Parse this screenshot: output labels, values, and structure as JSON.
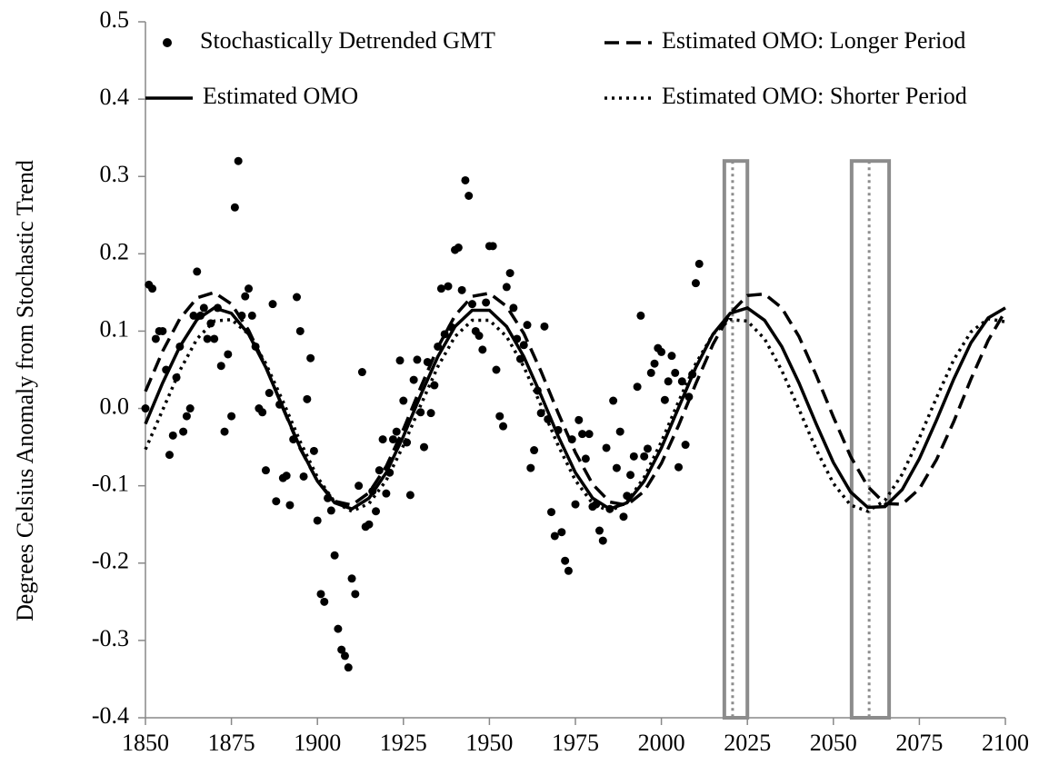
{
  "chart_data": {
    "type": "line",
    "y_label": "Degrees Celsius Anomaly from Stochastic Trend",
    "xlim": [
      1850,
      2100
    ],
    "xticks": [
      1850,
      1875,
      1900,
      1925,
      1950,
      1975,
      2000,
      2025,
      2050,
      2075,
      2100
    ],
    "ylim": [
      -0.4,
      0.5
    ],
    "yticks": [
      -0.4,
      -0.3,
      -0.2,
      -0.1,
      {
        "value": 0,
        "label": "0.0"
      },
      0.1,
      0.2,
      0.3,
      0.4,
      0.5
    ],
    "grid": false,
    "legend": "top",
    "series": [
      {
        "name": "Stochastically Detrended GMT",
        "type": "scatter",
        "color": "#000000",
        "x": [
          1850,
          1851,
          1852,
          1853,
          1854,
          1855,
          1856,
          1857,
          1858,
          1859,
          1860,
          1861,
          1862,
          1863,
          1864,
          1865,
          1866,
          1867,
          1868,
          1869,
          1870,
          1871,
          1872,
          1873,
          1874,
          1875,
          1876,
          1877,
          1878,
          1879,
          1880,
          1881,
          1882,
          1883,
          1884,
          1885,
          1886,
          1887,
          1888,
          1889,
          1890,
          1891,
          1892,
          1893,
          1894,
          1895,
          1896,
          1897,
          1898,
          1899,
          1900,
          1901,
          1902,
          1903,
          1904,
          1905,
          1906,
          1907,
          1908,
          1909,
          1910,
          1911,
          1912,
          1913,
          1914,
          1915,
          1916,
          1917,
          1918,
          1919,
          1920,
          1921,
          1922,
          1923,
          1924,
          1925,
          1926,
          1927,
          1928,
          1929,
          1930,
          1931,
          1932,
          1933,
          1934,
          1935,
          1936,
          1937,
          1938,
          1939,
          1940,
          1941,
          1942,
          1943,
          1944,
          1945,
          1946,
          1947,
          1948,
          1949,
          1950,
          1951,
          1952,
          1953,
          1954,
          1955,
          1956,
          1957,
          1958,
          1959,
          1960,
          1961,
          1962,
          1963,
          1964,
          1965,
          1966,
          1967,
          1968,
          1969,
          1970,
          1971,
          1972,
          1973,
          1974,
          1975,
          1976,
          1977,
          1978,
          1979,
          1980,
          1981,
          1982,
          1983,
          1984,
          1985,
          1986,
          1987,
          1988,
          1989,
          1990,
          1991,
          1992,
          1993,
          1994,
          1995,
          1996,
          1997,
          1998,
          1999,
          2000,
          2001,
          2002,
          2003,
          2004,
          2005,
          2006,
          2007,
          2008,
          2009,
          2010,
          2011
        ],
        "values": [
          0.0,
          0.16,
          0.155,
          0.09,
          0.1,
          0.1,
          0.05,
          -0.06,
          -0.035,
          0.04,
          0.08,
          -0.03,
          -0.01,
          0.0,
          0.12,
          0.177,
          0.12,
          0.13,
          0.09,
          0.11,
          0.09,
          0.13,
          0.055,
          -0.03,
          0.07,
          -0.01,
          0.26,
          0.32,
          0.12,
          0.145,
          0.155,
          0.12,
          0.08,
          0.0,
          -0.005,
          -0.08,
          0.02,
          0.135,
          -0.12,
          0.005,
          -0.09,
          -0.087,
          -0.125,
          -0.04,
          0.144,
          0.1,
          -0.088,
          0.012,
          0.065,
          -0.055,
          -0.145,
          -0.24,
          -0.25,
          -0.116,
          -0.132,
          -0.19,
          -0.285,
          -0.312,
          -0.32,
          -0.335,
          -0.22,
          -0.24,
          -0.1,
          0.047,
          -0.153,
          -0.15,
          -0.107,
          -0.133,
          -0.08,
          -0.04,
          -0.11,
          -0.083,
          -0.04,
          -0.03,
          0.062,
          0.01,
          -0.044,
          -0.112,
          0.037,
          0.063,
          -0.005,
          -0.05,
          0.06,
          -0.006,
          0.03,
          0.08,
          0.155,
          0.096,
          0.158,
          0.105,
          0.205,
          0.208,
          0.153,
          0.295,
          0.275,
          0.135,
          0.1,
          0.094,
          0.076,
          0.137,
          0.21,
          0.21,
          0.05,
          -0.01,
          -0.023,
          0.157,
          0.175,
          0.13,
          0.09,
          0.064,
          0.082,
          0.108,
          -0.077,
          -0.054,
          0.023,
          -0.006,
          0.106,
          -0.014,
          -0.134,
          -0.165,
          -0.028,
          -0.16,
          -0.197,
          -0.21,
          -0.04,
          -0.124,
          -0.015,
          -0.033,
          -0.065,
          -0.033,
          -0.127,
          -0.124,
          -0.158,
          -0.171,
          -0.051,
          -0.13,
          0.01,
          -0.077,
          -0.03,
          -0.14,
          -0.113,
          -0.086,
          -0.062,
          0.028,
          0.12,
          -0.062,
          -0.052,
          0.046,
          0.058,
          0.078,
          0.073,
          0.011,
          0.035,
          0.068,
          0.046,
          -0.076,
          0.035,
          -0.047,
          0.015,
          0.044,
          0.162,
          0.187
        ]
      },
      {
        "name": "Estimated OMO",
        "type": "line",
        "dash": "solid",
        "color": "#000000",
        "x": [
          1850,
          1855,
          1860,
          1865,
          1870,
          1875,
          1880,
          1885,
          1890,
          1895,
          1900,
          1905,
          1910,
          1915,
          1920,
          1925,
          1930,
          1935,
          1940,
          1945,
          1950,
          1955,
          1960,
          1965,
          1970,
          1975,
          1980,
          1985,
          1990,
          1995,
          2000,
          2005,
          2010,
          2015,
          2020,
          2025,
          2030,
          2035,
          2040,
          2045,
          2050,
          2055,
          2060,
          2065,
          2070,
          2075,
          2080,
          2085,
          2090,
          2095,
          2100
        ],
        "values": [
          -0.02,
          0.033,
          0.08,
          0.115,
          0.13,
          0.123,
          0.096,
          0.053,
          0.001,
          -0.051,
          -0.094,
          -0.122,
          -0.13,
          -0.116,
          -0.083,
          -0.036,
          0.017,
          0.067,
          0.106,
          0.127,
          0.127,
          0.106,
          0.067,
          0.017,
          -0.036,
          -0.083,
          -0.116,
          -0.13,
          -0.122,
          -0.094,
          -0.051,
          0.001,
          0.053,
          0.096,
          0.123,
          0.13,
          0.114,
          0.08,
          0.033,
          -0.02,
          -0.07,
          -0.108,
          -0.128,
          -0.127,
          -0.105,
          -0.065,
          -0.015,
          0.038,
          0.085,
          0.117,
          0.13
        ]
      },
      {
        "name": "Estimated OMO: Longer Period",
        "type": "line",
        "dash": "dashed",
        "color": "#000000",
        "x": [
          1850,
          1855,
          1860,
          1865,
          1870,
          1875,
          1880,
          1885,
          1890,
          1895,
          1900,
          1905,
          1910,
          1915,
          1920,
          1925,
          1930,
          1935,
          1940,
          1945,
          1950,
          1955,
          1960,
          1965,
          1970,
          1975,
          1980,
          1985,
          1990,
          1995,
          2000,
          2005,
          2010,
          2015,
          2020,
          2025,
          2030,
          2035,
          2040,
          2045,
          2050,
          2055,
          2060,
          2065,
          2070,
          2075,
          2080,
          2085,
          2090,
          2095,
          2100
        ],
        "values": [
          0.022,
          0.074,
          0.116,
          0.143,
          0.15,
          0.135,
          0.101,
          0.054,
          0.0,
          -0.052,
          -0.094,
          -0.12,
          -0.125,
          -0.109,
          -0.075,
          -0.027,
          0.027,
          0.079,
          0.12,
          0.145,
          0.149,
          0.132,
          0.097,
          0.048,
          -0.006,
          -0.057,
          -0.098,
          -0.121,
          -0.125,
          -0.107,
          -0.071,
          -0.022,
          0.032,
          0.083,
          0.123,
          0.146,
          0.148,
          0.13,
          0.093,
          0.043,
          -0.011,
          -0.062,
          -0.101,
          -0.123,
          -0.124,
          -0.104,
          -0.066,
          -0.017,
          0.038,
          0.088,
          0.126
        ]
      },
      {
        "name": "Estimated OMO: Shorter Period",
        "type": "line",
        "dash": "dotted",
        "color": "#000000",
        "x": [
          1850,
          1855,
          1860,
          1865,
          1870,
          1875,
          1880,
          1885,
          1890,
          1895,
          1900,
          1905,
          1910,
          1915,
          1920,
          1925,
          1930,
          1935,
          1940,
          1945,
          1950,
          1955,
          1960,
          1965,
          1970,
          1975,
          1980,
          1985,
          1990,
          1995,
          2000,
          2005,
          2010,
          2015,
          2020,
          2025,
          2030,
          2035,
          2040,
          2045,
          2050,
          2055,
          2060,
          2065,
          2070,
          2075,
          2080,
          2085,
          2090,
          2095,
          2100
        ],
        "values": [
          -0.053,
          -0.002,
          0.049,
          0.09,
          0.113,
          0.115,
          0.096,
          0.058,
          0.009,
          -0.043,
          -0.089,
          -0.121,
          -0.133,
          -0.123,
          -0.093,
          -0.048,
          0.004,
          0.054,
          0.093,
          0.114,
          0.114,
          0.093,
          0.054,
          0.004,
          -0.048,
          -0.093,
          -0.123,
          -0.133,
          -0.121,
          -0.089,
          -0.043,
          0.009,
          0.058,
          0.096,
          0.115,
          0.113,
          0.09,
          0.049,
          -0.001,
          -0.053,
          -0.097,
          -0.125,
          -0.133,
          -0.119,
          -0.085,
          -0.038,
          0.014,
          0.063,
          0.099,
          0.116,
          0.112
        ]
      }
    ],
    "bands": [
      {
        "x0": 2018.3,
        "x1": 2025,
        "line": 2020.7,
        "top": 0.32,
        "color": "#8c8c8c"
      },
      {
        "x0": 2055.3,
        "x1": 2066.2,
        "line": 2060.4,
        "top": 0.32,
        "color": "#8c8c8c"
      }
    ]
  }
}
